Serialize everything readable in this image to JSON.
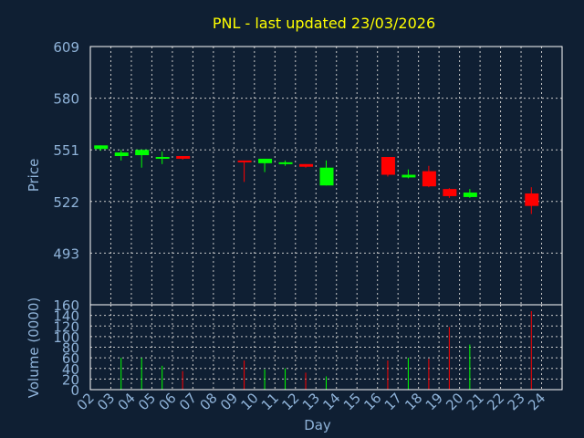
{
  "colors": {
    "background": "#0f1f33",
    "title": "#ffff00",
    "axis_text": "#8fb3d9",
    "frame": "#ffffff",
    "grid": "#c8c8c8",
    "up": "#00ff00",
    "down": "#ff0000"
  },
  "chart_data": {
    "type": "candlestick",
    "title": "PNL - last updated 23/03/2026",
    "xlabel": "Day",
    "x_ticks": [
      "02",
      "03",
      "04",
      "05",
      "06",
      "07",
      "08",
      "09",
      "10",
      "11",
      "12",
      "13",
      "14",
      "15",
      "16",
      "17",
      "18",
      "19",
      "20",
      "21",
      "22",
      "23",
      "24"
    ],
    "price_panel": {
      "ylabel": "Price",
      "ylim": [
        464,
        609
      ],
      "y_ticks": [
        609,
        580,
        551,
        522,
        493
      ],
      "grid": true
    },
    "volume_panel": {
      "ylabel": "Volume (0000)",
      "ylim": [
        0,
        160
      ],
      "y_ticks": [
        0,
        20,
        40,
        60,
        80,
        100,
        120,
        140,
        160
      ],
      "grid": true
    },
    "candles": [
      {
        "day": "02",
        "open": 551.5,
        "high": 553.5,
        "low": 550.5,
        "close": 553.5,
        "volume": 0
      },
      {
        "day": "03",
        "open": 547.5,
        "high": 551.0,
        "low": 545.0,
        "close": 549.5,
        "volume": 60
      },
      {
        "day": "04",
        "open": 548.0,
        "high": 551.0,
        "low": 541.0,
        "close": 551.0,
        "volume": 60
      },
      {
        "day": "05",
        "open": 546.5,
        "high": 550.0,
        "low": 543.0,
        "close": 547.0,
        "volume": 45
      },
      {
        "day": "06",
        "open": 547.5,
        "high": 547.5,
        "low": 545.5,
        "close": 546.0,
        "volume": 35
      },
      {
        "day": "09",
        "open": 545.0,
        "high": 545.0,
        "low": 533.0,
        "close": 544.0,
        "volume": 55
      },
      {
        "day": "10",
        "open": 543.5,
        "high": 546.0,
        "low": 538.5,
        "close": 546.0,
        "volume": 38
      },
      {
        "day": "11",
        "open": 543.5,
        "high": 545.0,
        "low": 542.0,
        "close": 544.0,
        "volume": 40
      },
      {
        "day": "12",
        "open": 543.0,
        "high": 543.0,
        "low": 541.0,
        "close": 541.5,
        "volume": 32
      },
      {
        "day": "13",
        "open": 531.0,
        "high": 545.0,
        "low": 531.0,
        "close": 541.0,
        "volume": 25
      },
      {
        "day": "16",
        "open": 547.0,
        "high": 547.0,
        "low": 536.0,
        "close": 537.0,
        "volume": 55
      },
      {
        "day": "17",
        "open": 535.5,
        "high": 540.0,
        "low": 535.0,
        "close": 537.0,
        "volume": 60
      },
      {
        "day": "18",
        "open": 539.0,
        "high": 542.0,
        "low": 530.0,
        "close": 530.5,
        "volume": 58
      },
      {
        "day": "19",
        "open": 529.0,
        "high": 529.5,
        "low": 524.0,
        "close": 525.0,
        "volume": 118
      },
      {
        "day": "20",
        "open": 524.5,
        "high": 529.0,
        "low": 524.0,
        "close": 527.0,
        "volume": 85
      },
      {
        "day": "23",
        "open": 526.5,
        "high": 530.0,
        "low": 515.0,
        "close": 519.5,
        "volume": 148
      }
    ]
  }
}
